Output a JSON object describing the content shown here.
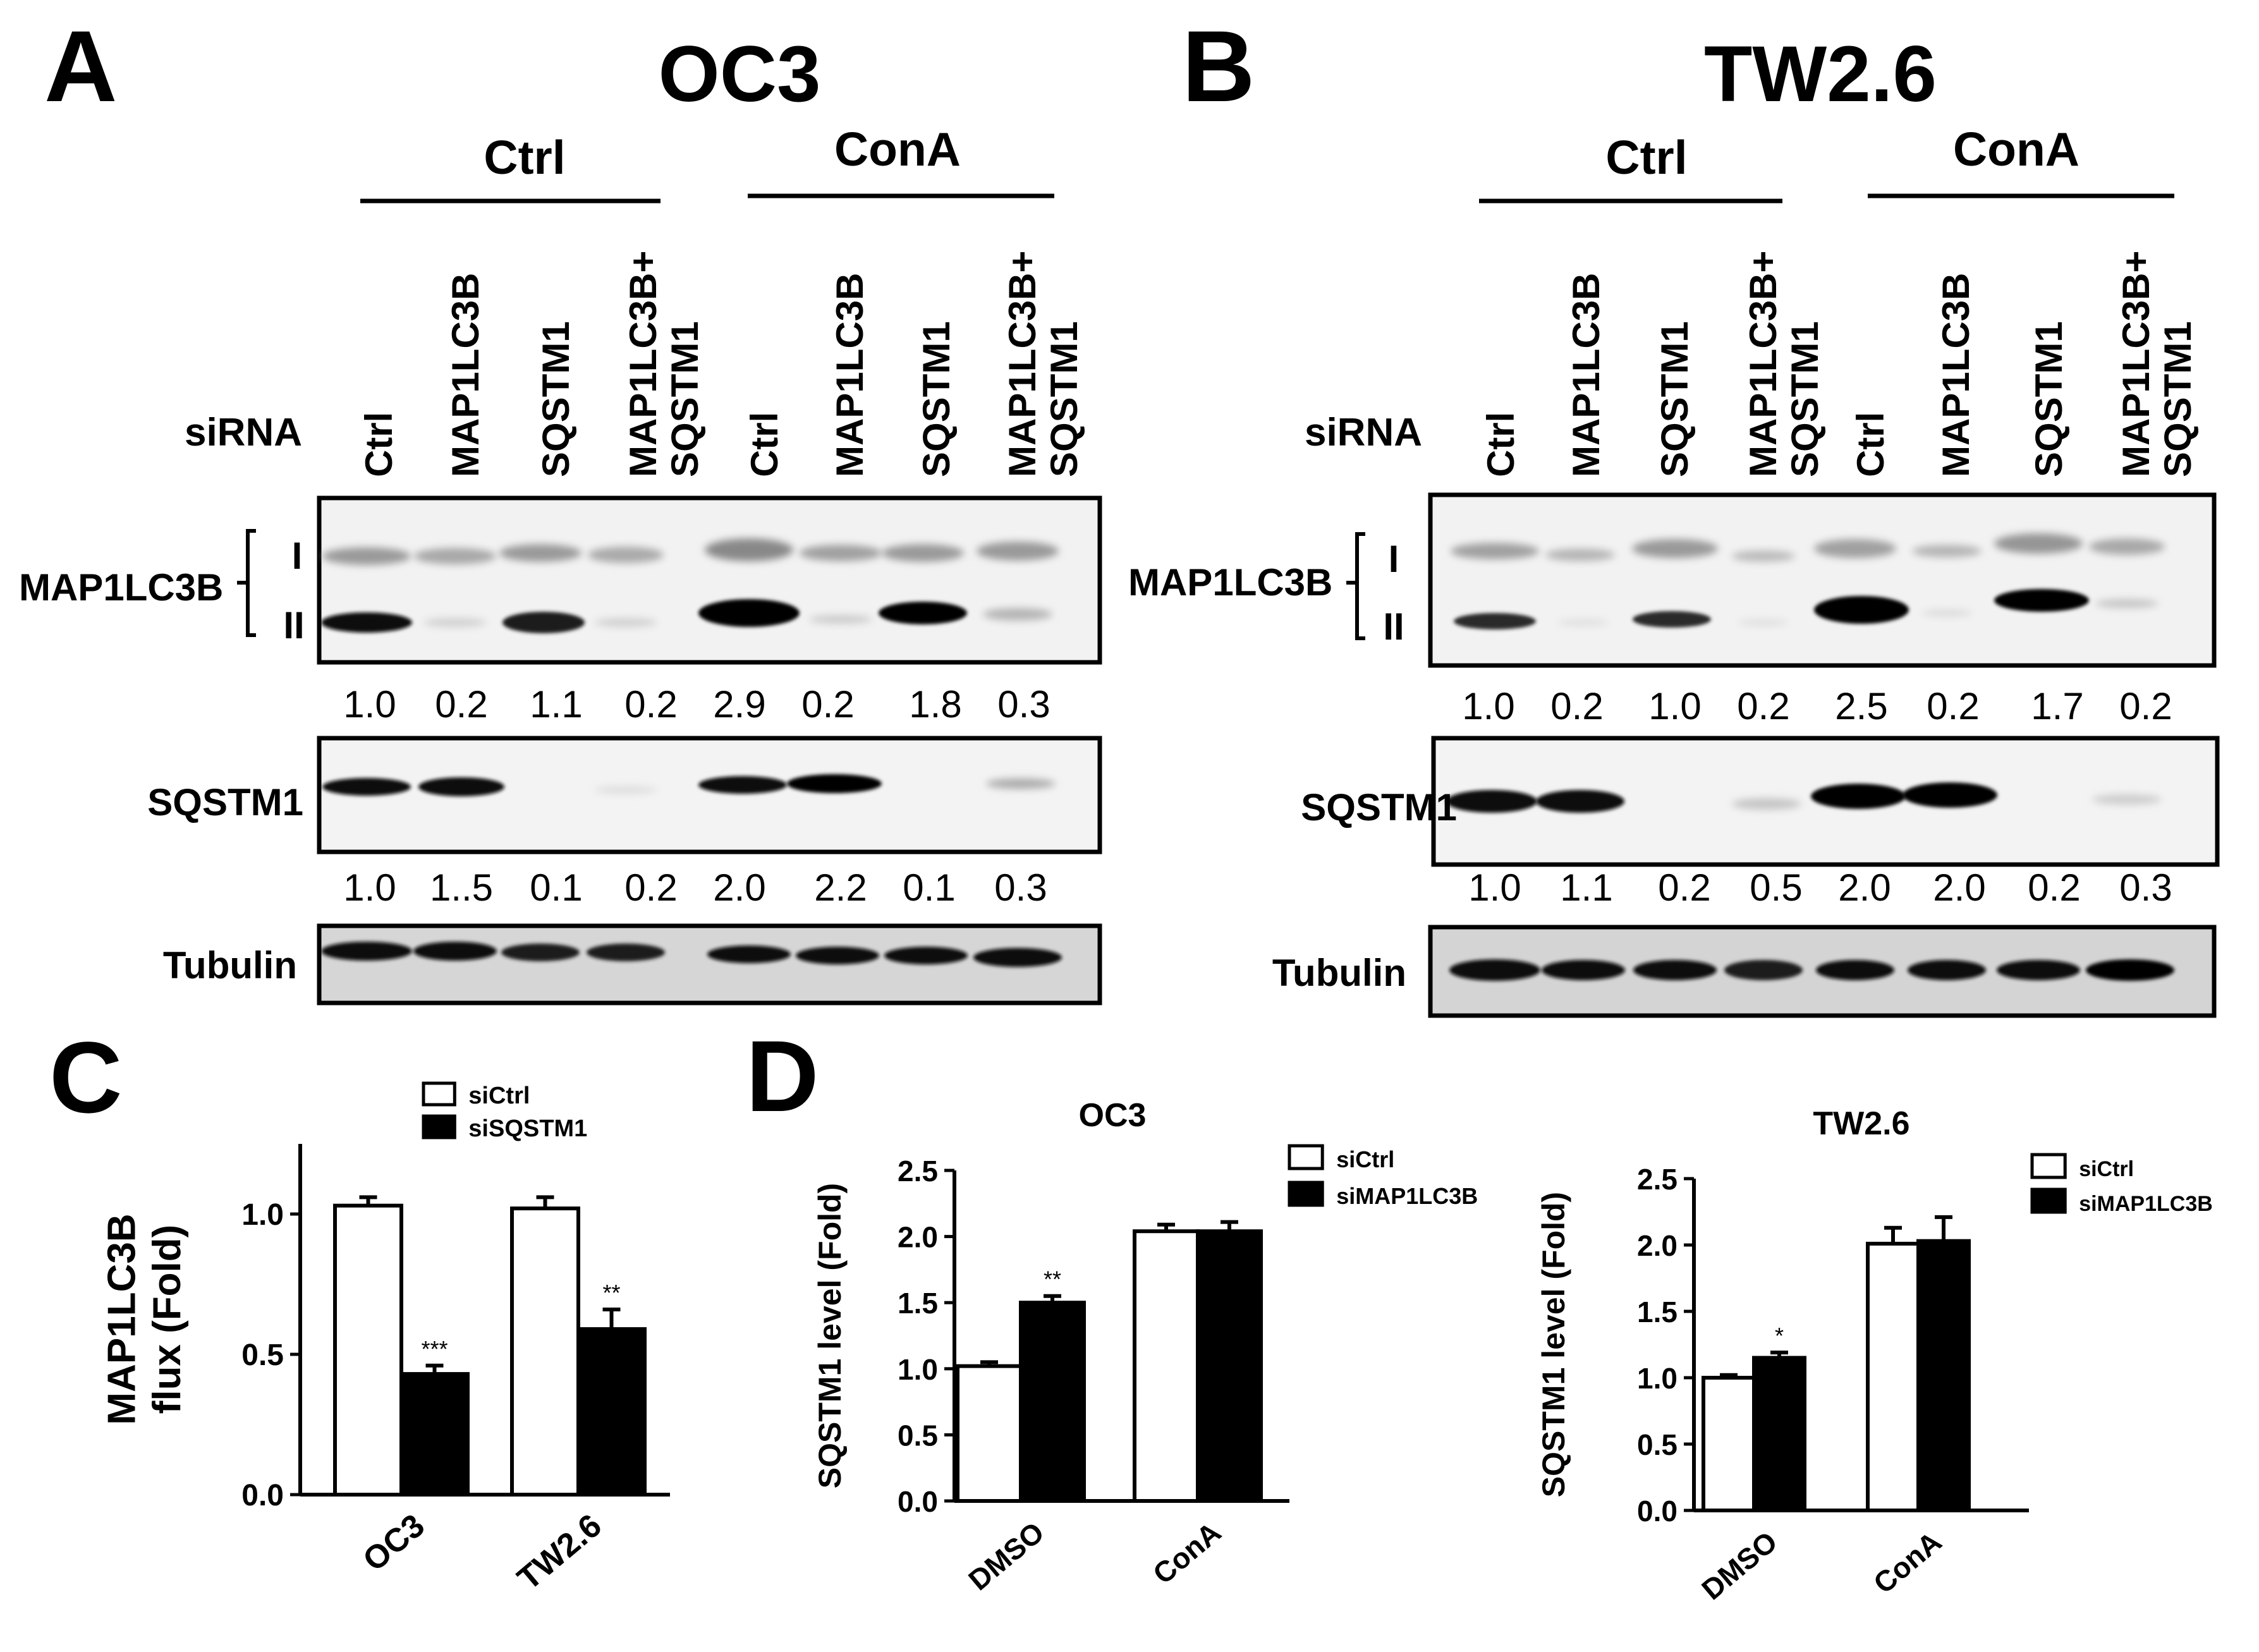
{
  "panels": {
    "A": {
      "letter": "A",
      "title": "OC3",
      "group_labels": [
        "Ctrl",
        "ConA"
      ],
      "sirna_label": "siRNA",
      "lanes": [
        [
          "Ctrl"
        ],
        [
          "MAP1LC3B"
        ],
        [
          "SQSTM1"
        ],
        [
          "MAP1LC3B+",
          "SQSTM1"
        ],
        [
          "Ctrl"
        ],
        [
          "MAP1LC3B"
        ],
        [
          "SQSTM1"
        ],
        [
          "MAP1LC3B+",
          "SQSTM1"
        ]
      ],
      "blots": {
        "lc3": {
          "label": "MAP1LC3B",
          "band_I": "I",
          "band_II": "II",
          "quant": [
            "1.0",
            "0.2",
            "1.1",
            "0.2",
            "2.9",
            "0.2",
            "1.8",
            "0.3"
          ]
        },
        "sqstm1": {
          "label": "SQSTM1",
          "quant": [
            "1.0",
            "1..5",
            "0.1",
            "0.2",
            "2.0",
            "2.2",
            "0.1",
            "0.3"
          ]
        },
        "tubulin": {
          "label": "Tubulin"
        }
      }
    },
    "B": {
      "letter": "B",
      "title": "TW2.6",
      "group_labels": [
        "Ctrl",
        "ConA"
      ],
      "sirna_label": "siRNA",
      "lanes": [
        [
          "Ctrl"
        ],
        [
          "MAP1LC3B"
        ],
        [
          "SQSTM1"
        ],
        [
          "MAP1LC3B+",
          "SQSTM1"
        ],
        [
          "Ctrl"
        ],
        [
          "MAP1LC3B"
        ],
        [
          "SQSTM1"
        ],
        [
          "MAP1LC3B+",
          "SQSTM1"
        ]
      ],
      "blots": {
        "lc3": {
          "label": "MAP1LC3B",
          "band_I": "I",
          "band_II": "II",
          "quant": [
            "1.0",
            "0.2",
            "1.0",
            "0.2",
            "2.5",
            "0.2",
            "1.7",
            "0.2"
          ]
        },
        "sqstm1": {
          "label": "SQSTM1",
          "quant": [
            "1.0",
            "1.1",
            "0.2",
            "0.5",
            "2.0",
            "2.0",
            "0.2",
            "0.3"
          ]
        },
        "tubulin": {
          "label": "Tubulin"
        }
      }
    },
    "C": {
      "letter": "C"
    },
    "D": {
      "letter": "D"
    }
  },
  "colors": {
    "open_bar": "#ffffff",
    "filled_bar": "#000000",
    "ink": "#000000"
  },
  "chart_data": [
    {
      "panel": "C",
      "type": "bar",
      "title": "",
      "ylabel": "MAP1LC3B flux (Fold)",
      "ylabel_lines": [
        "MAP1LC3B",
        "flux (Fold)"
      ],
      "xlabel": "",
      "categories": [
        "OC3",
        "TW2.6"
      ],
      "ylim": [
        0,
        1.25
      ],
      "yticks": [
        "0.0",
        "0.5",
        "1.0"
      ],
      "series": [
        {
          "name": "siCtrl",
          "values": [
            1.03,
            1.02
          ],
          "errors": [
            0.03,
            0.04
          ],
          "sig": [
            "",
            ""
          ]
        },
        {
          "name": "siSQSTM1",
          "values": [
            0.43,
            0.59
          ],
          "errors": [
            0.03,
            0.07
          ],
          "sig": [
            "***",
            "**"
          ]
        }
      ],
      "legend": "top-right"
    },
    {
      "panel": "D",
      "type": "bar",
      "title": "OC3",
      "ylabel": "SQSTM1 level (Fold)",
      "xlabel": "",
      "categories": [
        "DMSO",
        "ConA"
      ],
      "ylim": [
        0,
        2.5
      ],
      "yticks": [
        "0.0",
        "0.5",
        "1.0",
        "1.5",
        "2.0",
        "2.5"
      ],
      "series": [
        {
          "name": "siCtrl",
          "values": [
            1.02,
            2.04
          ],
          "errors": [
            0.03,
            0.05
          ],
          "sig": [
            "",
            ""
          ]
        },
        {
          "name": "siMAP1LC3B",
          "values": [
            1.5,
            2.04
          ],
          "errors": [
            0.05,
            0.07
          ],
          "sig": [
            "**",
            ""
          ]
        }
      ],
      "legend": "top-right"
    },
    {
      "panel": "D",
      "type": "bar",
      "title": "TW2.6",
      "ylabel": "SQSTM1 level (Fold)",
      "xlabel": "",
      "categories": [
        "DMSO",
        "ConA"
      ],
      "ylim": [
        0,
        2.5
      ],
      "yticks": [
        "0.0",
        "0.5",
        "1.0",
        "1.5",
        "2.0",
        "2.5"
      ],
      "series": [
        {
          "name": "siCtrl",
          "values": [
            1.0,
            2.01
          ],
          "errors": [
            0.02,
            0.12
          ],
          "sig": [
            "",
            ""
          ]
        },
        {
          "name": "siMAP1LC3B",
          "values": [
            1.15,
            2.03
          ],
          "errors": [
            0.04,
            0.18
          ],
          "sig": [
            "*",
            ""
          ]
        }
      ],
      "legend": "top-right"
    }
  ]
}
